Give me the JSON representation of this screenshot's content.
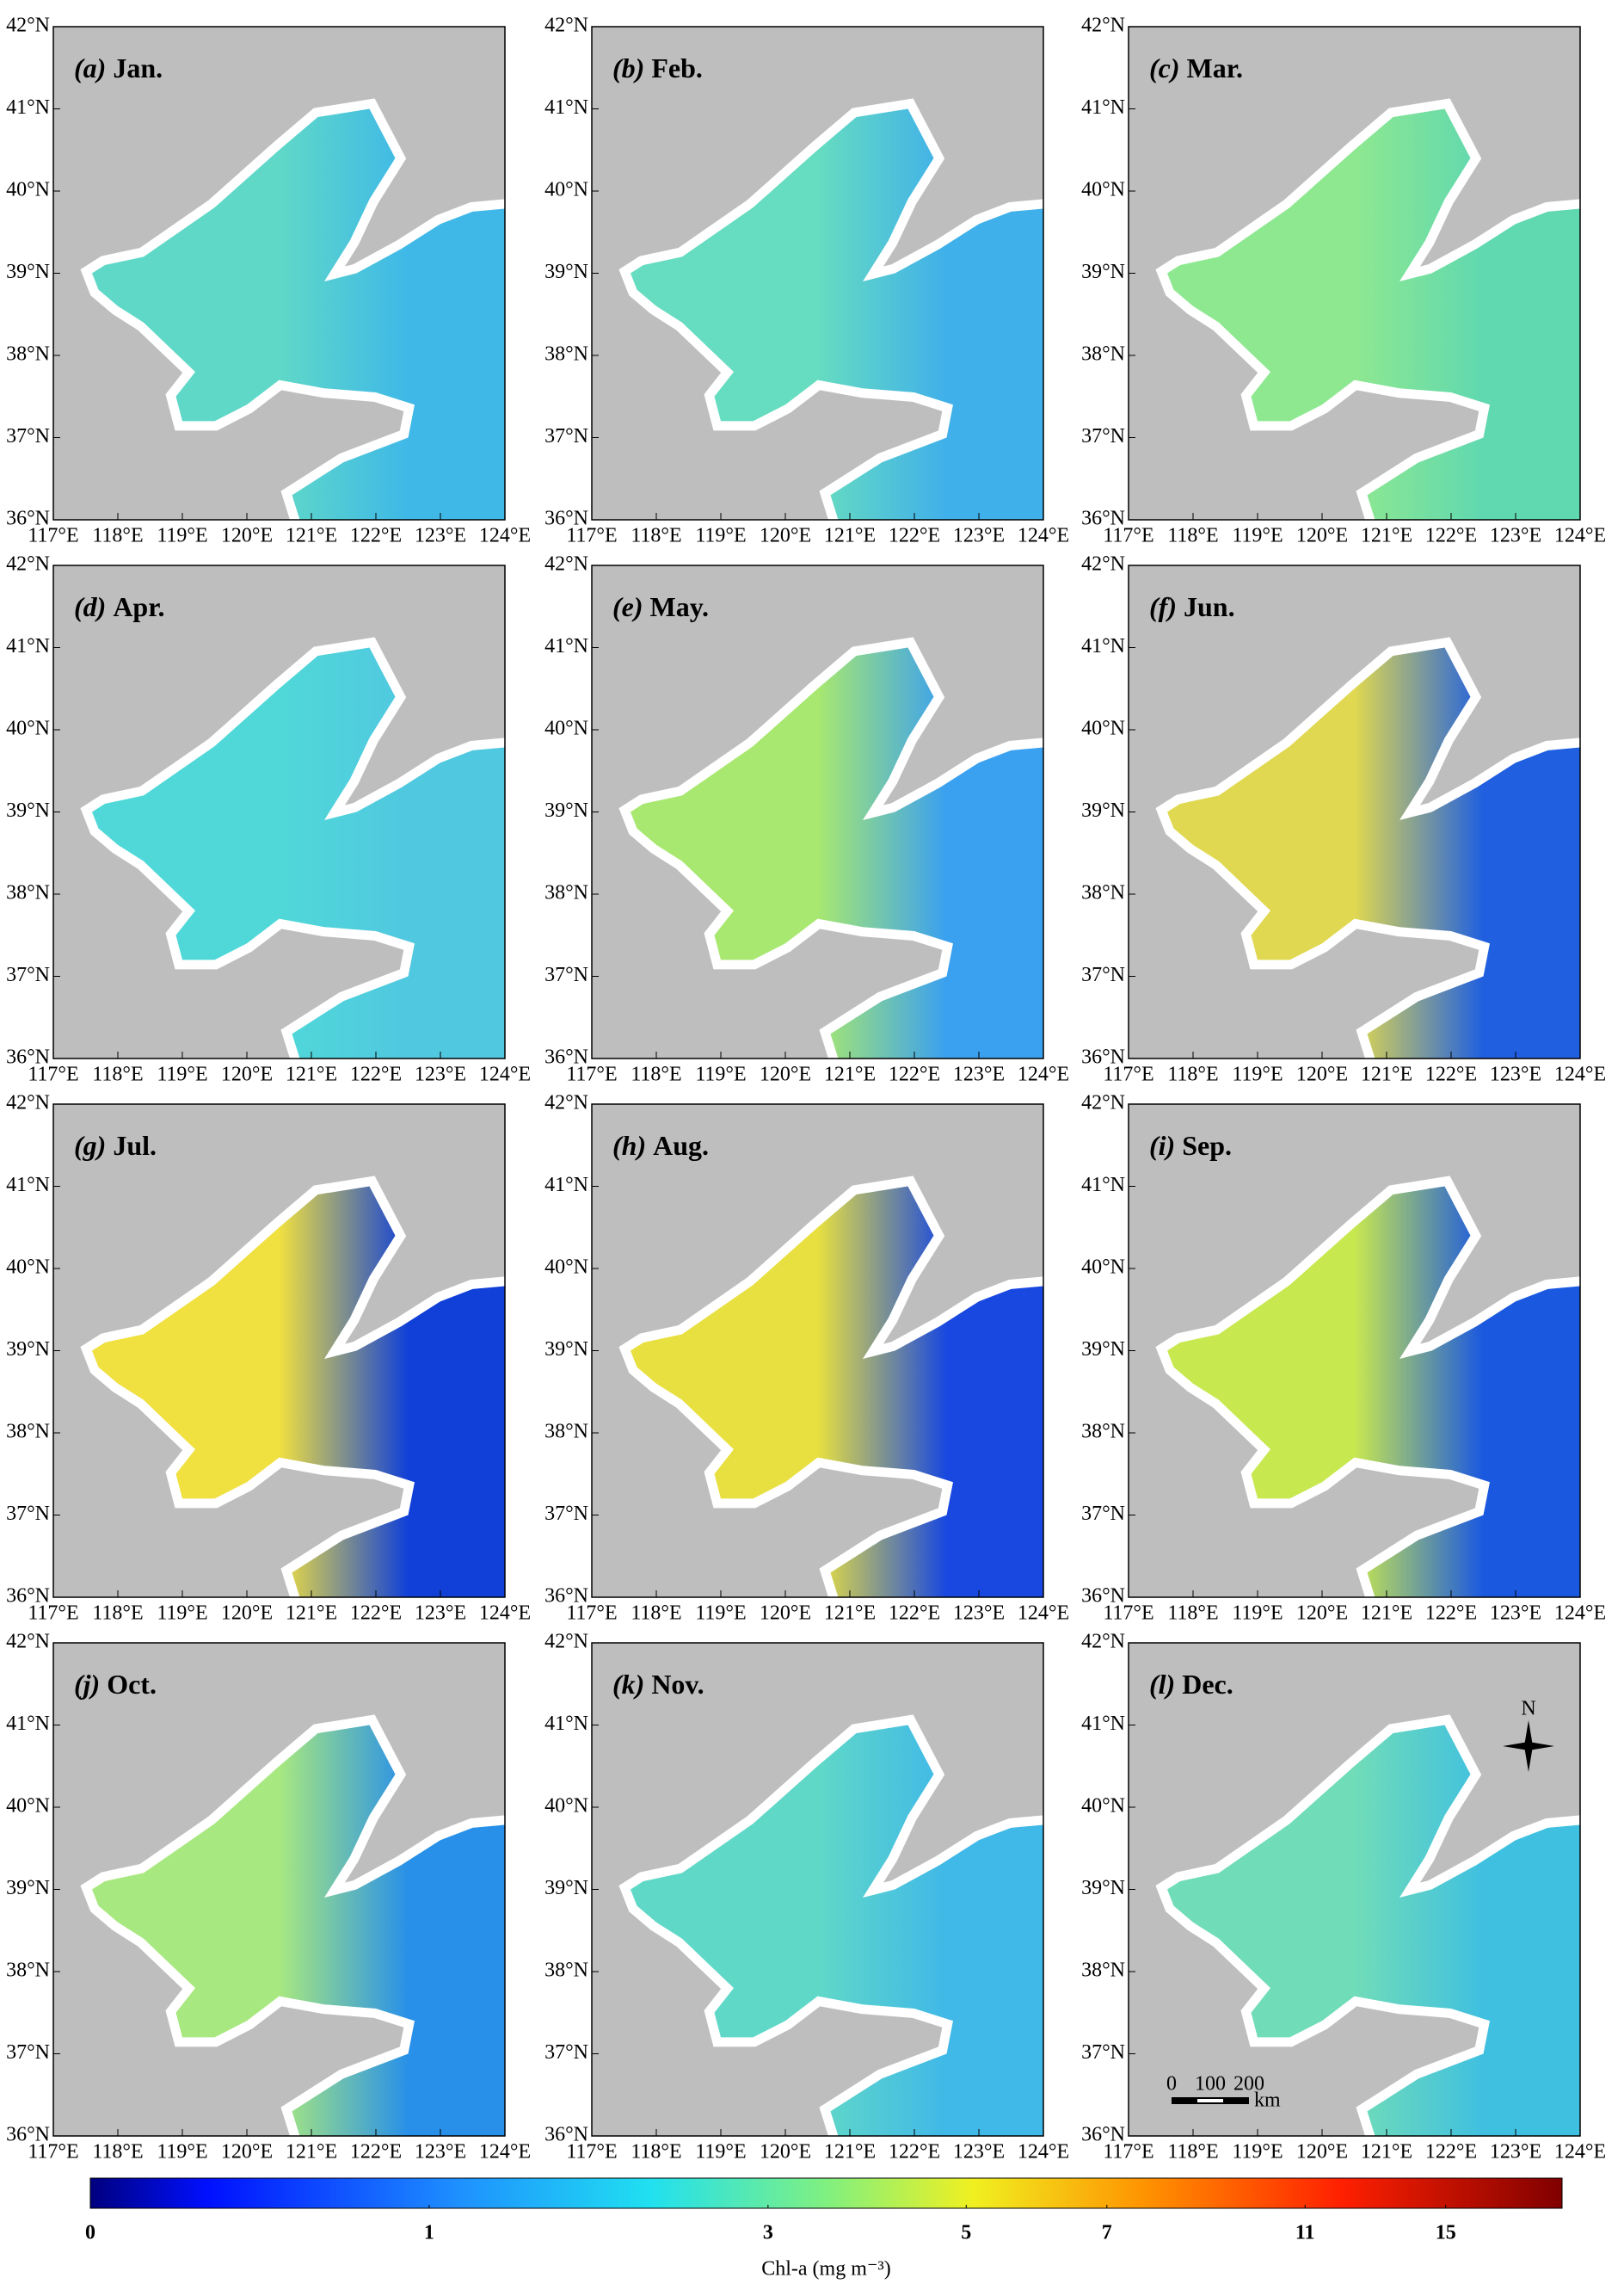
{
  "panels": [
    {
      "letter": "(a)",
      "month": "Jan.",
      "colors": [
        "#5fd8c8",
        "#3fb8e8"
      ]
    },
    {
      "letter": "(b)",
      "month": "Feb.",
      "colors": [
        "#66dcc0",
        "#40b0ea"
      ]
    },
    {
      "letter": "(c)",
      "month": "Mar.",
      "colors": [
        "#8ee890",
        "#60d8b0"
      ]
    },
    {
      "letter": "(d)",
      "month": "Apr.",
      "colors": [
        "#50d8d8",
        "#50c8e0"
      ]
    },
    {
      "letter": "(e)",
      "month": "May.",
      "colors": [
        "#a8e870",
        "#3aa0f0"
      ]
    },
    {
      "letter": "(f)",
      "month": "Jun.",
      "colors": [
        "#e0d850",
        "#2060e0"
      ]
    },
    {
      "letter": "(g)",
      "month": "Jul.",
      "colors": [
        "#f0e040",
        "#1040d8"
      ]
    },
    {
      "letter": "(h)",
      "month": "Aug.",
      "colors": [
        "#e8e040",
        "#1848e0"
      ]
    },
    {
      "letter": "(i)",
      "month": "Sep.",
      "colors": [
        "#c8e850",
        "#1a58e0"
      ]
    },
    {
      "letter": "(j)",
      "month": "Oct.",
      "colors": [
        "#a8e880",
        "#2890e8"
      ]
    },
    {
      "letter": "(k)",
      "month": "Nov.",
      "colors": [
        "#60d8c8",
        "#40b8e8"
      ]
    },
    {
      "letter": "(l)",
      "month": "Dec.",
      "colors": [
        "#70dcb8",
        "#40c0e0"
      ]
    }
  ],
  "xlim": [
    117,
    124
  ],
  "ylim": [
    36,
    42
  ],
  "xticks": [
    {
      "value": 117,
      "label": "117°E"
    },
    {
      "value": 118,
      "label": "118°E"
    },
    {
      "value": 119,
      "label": "119°E"
    },
    {
      "value": 120,
      "label": "120°E"
    },
    {
      "value": 121,
      "label": "121°E"
    },
    {
      "value": 122,
      "label": "122°E"
    },
    {
      "value": 123,
      "label": "123°E"
    },
    {
      "value": 124,
      "label": "124°E"
    }
  ],
  "yticks": [
    {
      "value": 36,
      "label": "36°N"
    },
    {
      "value": 37,
      "label": "37°N"
    },
    {
      "value": 38,
      "label": "38°N"
    },
    {
      "value": 39,
      "label": "39°N"
    },
    {
      "value": 40,
      "label": "40°N"
    },
    {
      "value": 41,
      "label": "41°N"
    },
    {
      "value": 42,
      "label": "42°N"
    }
  ],
  "north": "N",
  "scalebar": {
    "labels": [
      "0",
      "100",
      "200"
    ],
    "unit": "km"
  },
  "colorbar": {
    "label": "Chl-a (mg m⁻³)",
    "clim": [
      0,
      19.3
    ],
    "scale": "log1p",
    "ticks": [
      0,
      1,
      3,
      5,
      7,
      11,
      15
    ]
  }
}
